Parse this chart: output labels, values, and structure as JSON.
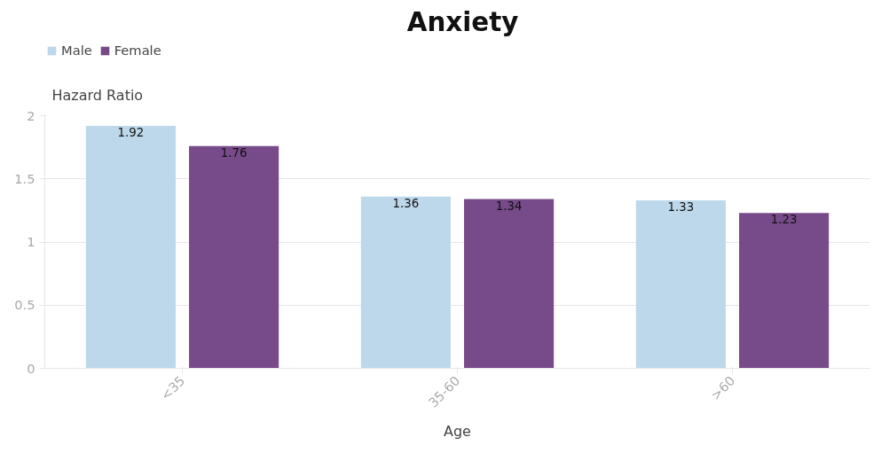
{
  "chart_data": {
    "type": "bar",
    "title": "Anxiety",
    "xlabel": "Age",
    "ylabel": "Hazard Ratio",
    "categories": [
      "<35",
      "35-60",
      ">60"
    ],
    "series": [
      {
        "name": "Male",
        "color": "#bdd8ea",
        "values": [
          1.92,
          1.36,
          1.33
        ]
      },
      {
        "name": "Female",
        "color": "#774a8a",
        "values": [
          1.76,
          1.34,
          1.23
        ]
      }
    ],
    "ylim": [
      0,
      2
    ],
    "yticks": [
      0,
      0.5,
      1,
      1.5,
      2
    ],
    "grid": "y",
    "legend": "top left",
    "data_labels": true
  }
}
